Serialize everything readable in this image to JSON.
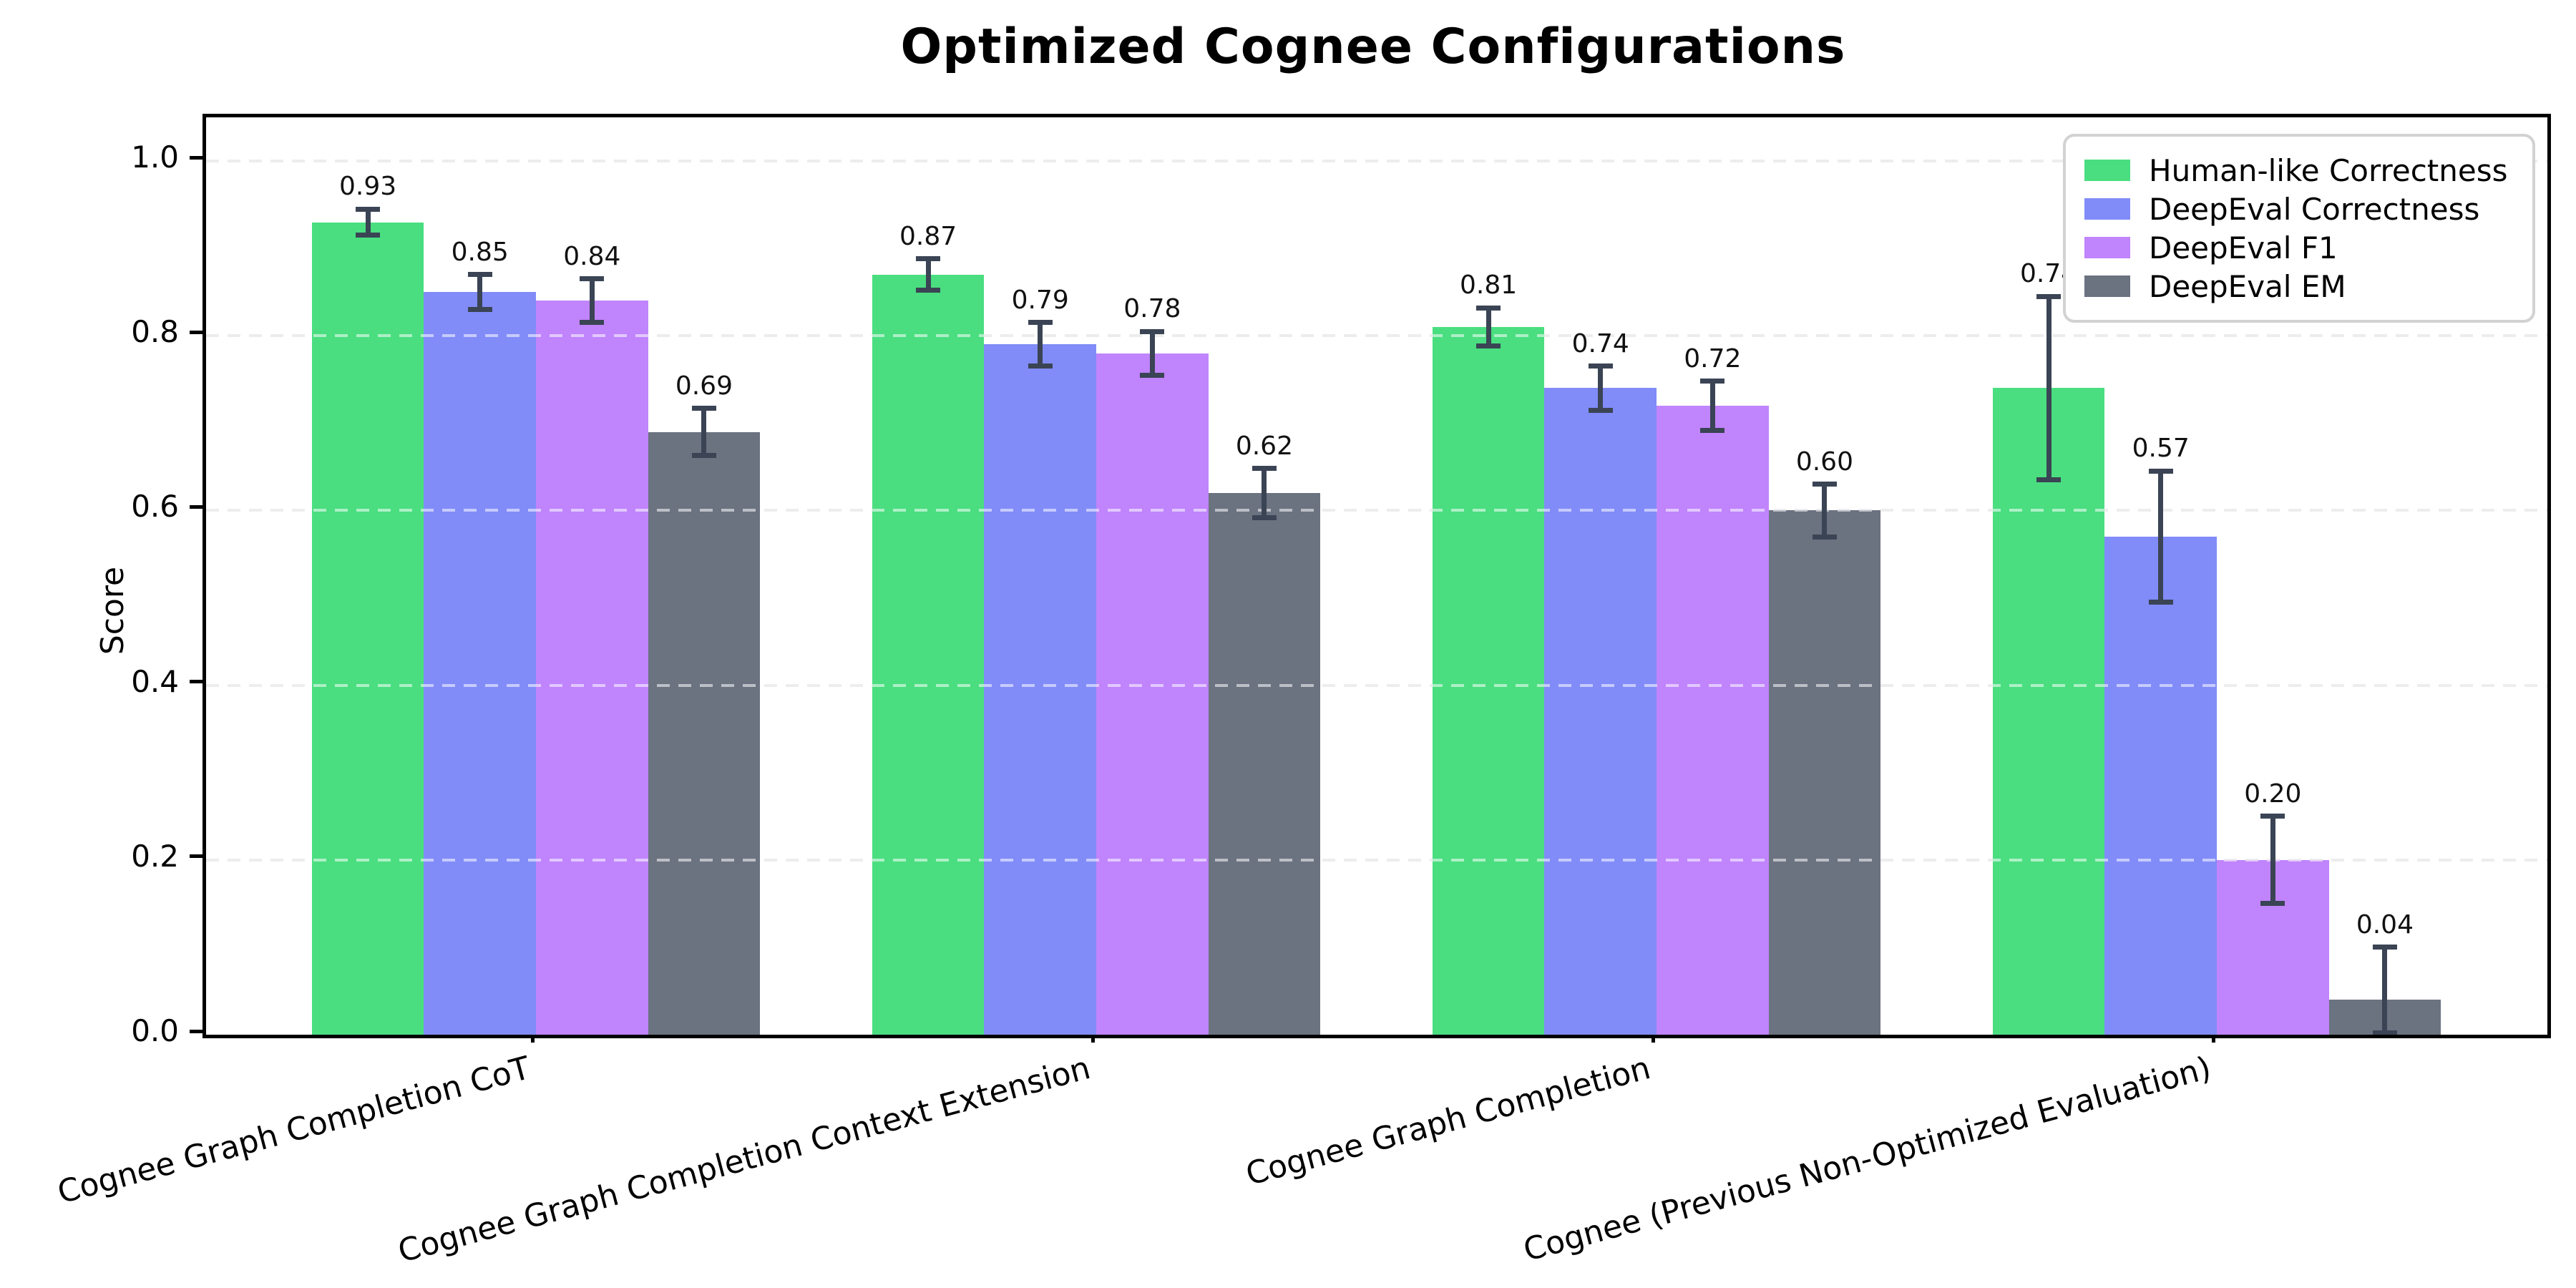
{
  "chart_data": {
    "type": "bar",
    "title": "Optimized Cognee Configurations",
    "ylabel": "Score",
    "xlabel": "",
    "ylim": [
      0,
      1.05
    ],
    "yticks": [
      0.0,
      0.2,
      0.4,
      0.6,
      0.8,
      1.0
    ],
    "grid": "horizontal dashed lines at each y tick",
    "legend_position": "upper right inside plot",
    "background_color": "#ffffff",
    "error_bar_color": "#3a4454",
    "categories": [
      "Cognee Graph Completion CoT",
      "Cognee Graph Completion Context Extension",
      "Cognee Graph Completion",
      "Cognee (Previous Non-Optimized Evaluation)"
    ],
    "series": [
      {
        "name": "Human-like Correctness",
        "color": "#4ade80",
        "values": [
          0.93,
          0.87,
          0.81,
          0.74
        ],
        "errors": [
          0.015,
          0.018,
          0.022,
          0.105
        ]
      },
      {
        "name": "DeepEval Correctness",
        "color": "#818cf8",
        "values": [
          0.85,
          0.79,
          0.74,
          0.57
        ],
        "errors": [
          0.02,
          0.025,
          0.025,
          0.075
        ]
      },
      {
        "name": "DeepEval F1",
        "color": "#c084fc",
        "values": [
          0.84,
          0.78,
          0.72,
          0.2
        ],
        "errors": [
          0.025,
          0.025,
          0.028,
          0.05
        ]
      },
      {
        "name": "DeepEval EM",
        "color": "#6b7280",
        "values": [
          0.69,
          0.62,
          0.6,
          0.04
        ],
        "errors": [
          0.027,
          0.028,
          0.03,
          0.06
        ]
      }
    ],
    "value_labels": [
      [
        "0.93",
        "0.87",
        "0.81",
        "0.74"
      ],
      [
        "0.85",
        "0.79",
        "0.74",
        "0.57"
      ],
      [
        "0.84",
        "0.78",
        "0.72",
        "0.20"
      ],
      [
        "0.69",
        "0.62",
        "0.60",
        "0.04"
      ]
    ]
  }
}
